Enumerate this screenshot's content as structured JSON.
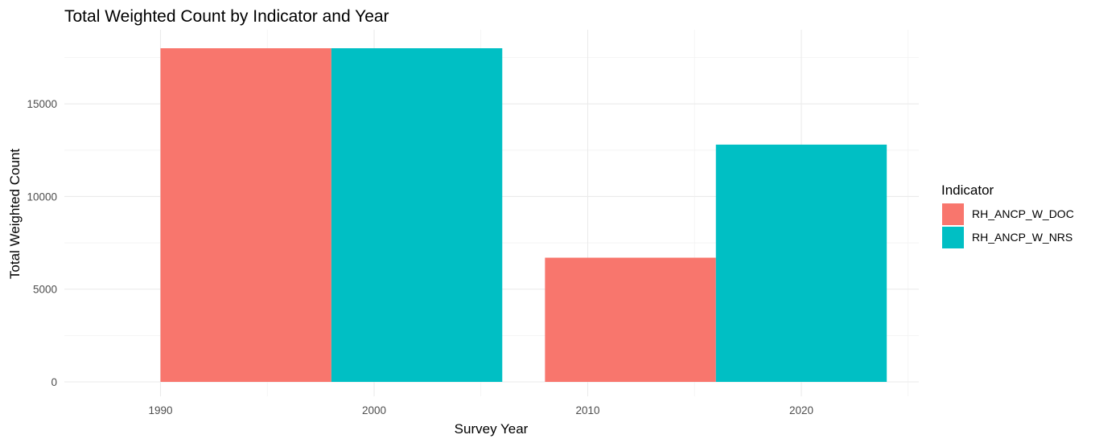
{
  "chart_data": {
    "type": "bar",
    "title": "Total Weighted Count by Indicator and Year",
    "xlabel": "Survey Year",
    "ylabel": "Total Weighted Count",
    "x_ticks": [
      "1990",
      "2000",
      "2010",
      "2020"
    ],
    "y_ticks": [
      "0",
      "5000",
      "10000",
      "15000"
    ],
    "xlim": [
      1985.5,
      2025.5
    ],
    "ylim": [
      0,
      18000
    ],
    "grid": true,
    "legend": {
      "title": "Indicator",
      "placement": "right"
    },
    "series": [
      {
        "name": "RH_ANCP_W_DOC",
        "color": "#F8766D",
        "points": [
          {
            "x": 1994,
            "y": 18000
          },
          {
            "x": 2012,
            "y": 6700
          }
        ]
      },
      {
        "name": "RH_ANCP_W_NRS",
        "color": "#00BFC4",
        "points": [
          {
            "x": 2002,
            "y": 18000
          },
          {
            "x": 2020,
            "y": 12800
          }
        ]
      }
    ],
    "bar_width": 8
  }
}
